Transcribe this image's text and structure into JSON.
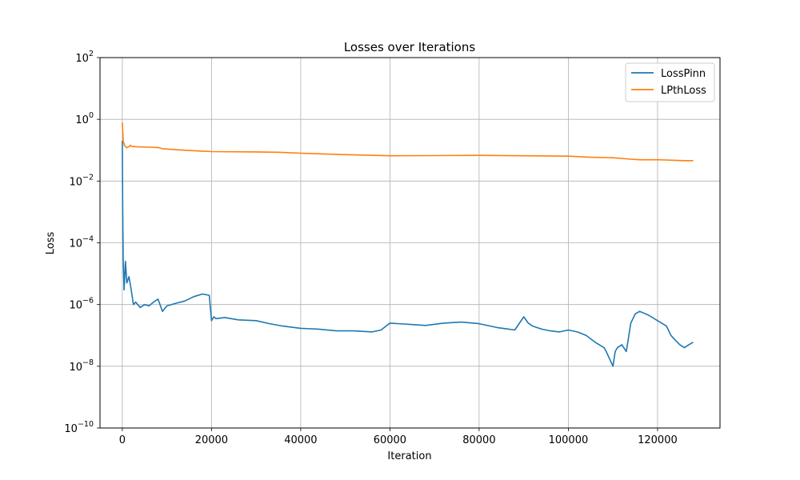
{
  "chart_data": {
    "type": "line",
    "title": "Losses over Iterations",
    "xlabel": "Iteration",
    "ylabel": "Loss",
    "yscale": "log",
    "xlim": [
      -5000,
      134000
    ],
    "ylim": [
      1e-10,
      100
    ],
    "grid": true,
    "legend_position": "top-right",
    "xticks": [
      {
        "value": 0,
        "label": "0"
      },
      {
        "value": 20000,
        "label": "20000"
      },
      {
        "value": 40000,
        "label": "40000"
      },
      {
        "value": 60000,
        "label": "60000"
      },
      {
        "value": 80000,
        "label": "80000"
      },
      {
        "value": 100000,
        "label": "100000"
      },
      {
        "value": 120000,
        "label": "120000"
      }
    ],
    "yticks": [
      {
        "value": 1e-10,
        "base": "10",
        "exp": "−10"
      },
      {
        "value": 1e-08,
        "base": "10",
        "exp": "−8"
      },
      {
        "value": 1e-06,
        "base": "10",
        "exp": "−6"
      },
      {
        "value": 0.0001,
        "base": "10",
        "exp": "−4"
      },
      {
        "value": 0.01,
        "base": "10",
        "exp": "−2"
      },
      {
        "value": 1,
        "base": "10",
        "exp": "0"
      },
      {
        "value": 100,
        "base": "10",
        "exp": "2"
      }
    ],
    "series": [
      {
        "name": "LossPinn",
        "color": "#1f77b4",
        "x": [
          0,
          100,
          200,
          400,
          700,
          1000,
          1500,
          2000,
          2500,
          3000,
          4000,
          5000,
          6000,
          7000,
          8000,
          9000,
          10000,
          12000,
          14000,
          16000,
          18000,
          19500,
          20000,
          20500,
          21000,
          23000,
          26000,
          30000,
          33000,
          36000,
          40000,
          44000,
          48000,
          52000,
          56000,
          58000,
          60000,
          64000,
          68000,
          72000,
          76000,
          80000,
          84000,
          88000,
          90000,
          91000,
          92000,
          94000,
          96000,
          98000,
          100000,
          102000,
          104000,
          106000,
          108000,
          108500,
          110000,
          110500,
          111000,
          112000,
          113000,
          114000,
          115000,
          116000,
          118000,
          120000,
          122000,
          123000,
          124000,
          125000,
          126000,
          127000,
          128000
        ],
        "y": [
          0.2,
          0.001,
          3e-05,
          3e-06,
          2.5e-05,
          5e-06,
          8e-06,
          3e-06,
          1e-06,
          1.2e-06,
          8e-07,
          1e-06,
          9e-07,
          1.2e-06,
          1.5e-06,
          6e-07,
          9e-07,
          1.1e-06,
          1.3e-06,
          1.8e-06,
          2.2e-06,
          2e-06,
          3e-07,
          4e-07,
          3.5e-07,
          3.8e-07,
          3.2e-07,
          3e-07,
          2.4e-07,
          2e-07,
          1.7e-07,
          1.6e-07,
          1.4e-07,
          1.4e-07,
          1.3e-07,
          1.5e-07,
          2.5e-07,
          2.3e-07,
          2.1e-07,
          2.5e-07,
          2.7e-07,
          2.4e-07,
          1.8e-07,
          1.5e-07,
          4e-07,
          2.5e-07,
          2e-07,
          1.6e-07,
          1.4e-07,
          1.3e-07,
          1.5e-07,
          1.3e-07,
          1e-07,
          6e-08,
          4e-08,
          3e-08,
          1e-08,
          3e-08,
          4e-08,
          5e-08,
          3e-08,
          2.5e-07,
          5e-07,
          6e-07,
          4.5e-07,
          3e-07,
          2e-07,
          1e-07,
          7e-08,
          5e-08,
          4e-08,
          5e-08,
          6e-08
        ]
      },
      {
        "name": "LPthLoss",
        "color": "#ff7f0e",
        "x": [
          0,
          200,
          500,
          1000,
          1500,
          1800,
          2000,
          3000,
          6000,
          8000,
          9000,
          14000,
          20000,
          30000,
          35000,
          40000,
          50000,
          60000,
          70000,
          80000,
          90000,
          100000,
          105000,
          110000,
          114000,
          116000,
          118000,
          120000,
          122000,
          124000,
          126000,
          128000
        ],
        "y": [
          0.8,
          0.2,
          0.14,
          0.12,
          0.13,
          0.145,
          0.135,
          0.13,
          0.125,
          0.122,
          0.112,
          0.1,
          0.09,
          0.088,
          0.086,
          0.08,
          0.072,
          0.066,
          0.067,
          0.068,
          0.066,
          0.064,
          0.059,
          0.057,
          0.051,
          0.049,
          0.049,
          0.049,
          0.048,
          0.047,
          0.046,
          0.046
        ]
      }
    ]
  }
}
